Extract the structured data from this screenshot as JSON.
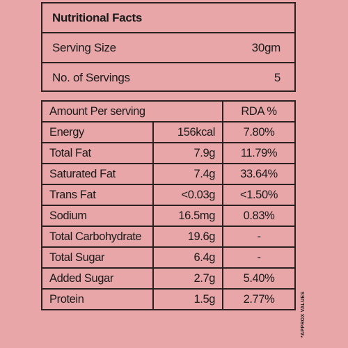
{
  "header": {
    "title": "Nutritional Facts",
    "serving_size_label": "Serving Size",
    "serving_size_value": "30gm",
    "servings_label": "No. of Servings",
    "servings_value": "5"
  },
  "table": {
    "header_amount": "Amount Per serving",
    "header_rda": "RDA %",
    "rows": [
      {
        "name": "Energy",
        "amount": "156kcal",
        "rda": "7.80%"
      },
      {
        "name": "Total Fat",
        "amount": "7.9g",
        "rda": "11.79%"
      },
      {
        "name": "Saturated Fat",
        "amount": "7.4g",
        "rda": "33.64%"
      },
      {
        "name": "Trans Fat",
        "amount": "<0.03g",
        "rda": "<1.50%"
      },
      {
        "name": "Sodium",
        "amount": "16.5mg",
        "rda": "0.83%"
      },
      {
        "name": "Total Carbohydrate",
        "amount": "19.6g",
        "rda": "-"
      },
      {
        "name": "Total Sugar",
        "amount": "6.4g",
        "rda": "-"
      },
      {
        "name": "Added Sugar",
        "amount": "2.7g",
        "rda": "5.40%"
      },
      {
        "name": "Protein",
        "amount": "1.5g",
        "rda": "2.77%"
      }
    ]
  },
  "side_note": "*APPROX VALUES",
  "colors": {
    "background": "#e8a6a9",
    "border": "#2a2020"
  }
}
